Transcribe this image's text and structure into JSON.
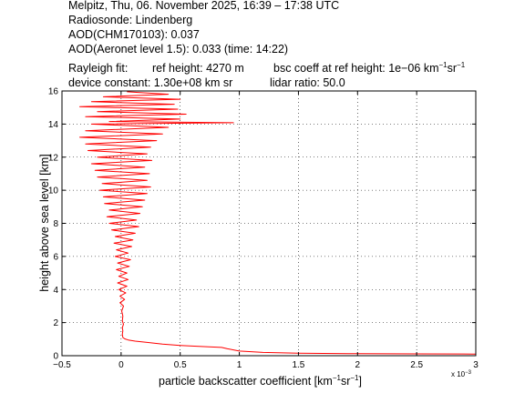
{
  "header": {
    "line1": "Melpitz, Thu, 06. November 2025, 16:39 – 17:38 UTC",
    "line2": "Radiosonde: Lindenberg",
    "line3": "AOD(CHM170103): 0.037",
    "line4": "AOD(Aeronet level 1.5): 0.033   (time: 14:22)",
    "rayleigh_label": "Rayleigh fit:",
    "ref_height": "ref height: 4270 m",
    "bsc_prefix": "bsc coeff at ref height: 1e−06 km",
    "unit_exp1": "−1",
    "unit_sr": "sr",
    "unit_exp2": "−1",
    "device_constant": "device constant: 1.30e+08 km sr",
    "lidar_ratio": "lidar ratio: 50.0"
  },
  "chart_data": {
    "type": "line",
    "title": "",
    "xlabel_main": "particle backscatter coefficient [km",
    "xlabel_exp1": "−1",
    "xlabel_sr": "sr",
    "xlabel_exp2": "−1",
    "xlabel_end": "]",
    "x_multiplier": "x 10",
    "x_multiplier_exp": "−3",
    "ylabel": "height above sea level [km]",
    "xlim": [
      -0.5,
      3
    ],
    "ylim": [
      0,
      16
    ],
    "xticks": [
      -0.5,
      0,
      0.5,
      1,
      1.5,
      2,
      2.5,
      3
    ],
    "xtick_labels": [
      "−0.5",
      "0",
      "0.5",
      "1",
      "1.5",
      "2",
      "2.5",
      "3"
    ],
    "yticks": [
      0,
      2,
      4,
      6,
      8,
      10,
      12,
      14,
      16
    ],
    "ytick_labels": [
      "0",
      "2",
      "4",
      "6",
      "8",
      "10",
      "12",
      "14",
      "16"
    ],
    "grid": true,
    "series": [
      {
        "color": "#ff0000",
        "points": [
          [
            3.0,
            0.1
          ],
          [
            2.5,
            0.11
          ],
          [
            2.0,
            0.12
          ],
          [
            1.5,
            0.15
          ],
          [
            1.2,
            0.2
          ],
          [
            1.0,
            0.28
          ],
          [
            0.95,
            0.35
          ],
          [
            0.9,
            0.42
          ],
          [
            0.85,
            0.5
          ],
          [
            0.7,
            0.55
          ],
          [
            0.5,
            0.62
          ],
          [
            0.35,
            0.7
          ],
          [
            0.22,
            0.8
          ],
          [
            0.12,
            0.88
          ],
          [
            0.06,
            0.95
          ],
          [
            0.03,
            1.02
          ],
          [
            0.015,
            1.1
          ],
          [
            0.01,
            1.3
          ],
          [
            0.015,
            1.5
          ],
          [
            0.01,
            1.7
          ],
          [
            0.02,
            1.9
          ],
          [
            0.01,
            2.1
          ],
          [
            0.015,
            2.4
          ],
          [
            0.005,
            2.7
          ],
          [
            0.02,
            3.0
          ],
          [
            -0.01,
            3.2
          ],
          [
            0.03,
            3.4
          ],
          [
            -0.01,
            3.6
          ],
          [
            0.04,
            3.8
          ],
          [
            -0.02,
            4.0
          ],
          [
            0.05,
            4.2
          ],
          [
            -0.03,
            4.4
          ],
          [
            0.06,
            4.6
          ],
          [
            -0.02,
            4.8
          ],
          [
            0.05,
            5.0
          ],
          [
            -0.04,
            5.2
          ],
          [
            0.07,
            5.4
          ],
          [
            -0.03,
            5.6
          ],
          [
            0.08,
            5.8
          ],
          [
            -0.05,
            6.0
          ],
          [
            0.06,
            6.2
          ],
          [
            -0.04,
            6.4
          ],
          [
            0.09,
            6.6
          ],
          [
            -0.06,
            6.8
          ],
          [
            0.1,
            7.0
          ],
          [
            -0.05,
            7.2
          ],
          [
            0.12,
            7.4
          ],
          [
            -0.08,
            7.6
          ],
          [
            0.15,
            7.8
          ],
          [
            -0.1,
            8.0
          ],
          [
            0.13,
            8.2
          ],
          [
            -0.12,
            8.4
          ],
          [
            0.16,
            8.6
          ],
          [
            -0.1,
            8.8
          ],
          [
            0.18,
            9.0
          ],
          [
            -0.14,
            9.2
          ],
          [
            0.2,
            9.4
          ],
          [
            -0.15,
            9.6
          ],
          [
            0.22,
            9.8
          ],
          [
            -0.18,
            10.0
          ],
          [
            0.25,
            10.2
          ],
          [
            -0.16,
            10.4
          ],
          [
            0.22,
            10.6
          ],
          [
            -0.2,
            10.8
          ],
          [
            0.24,
            11.0
          ],
          [
            -0.22,
            11.2
          ],
          [
            0.2,
            11.4
          ],
          [
            -0.25,
            11.6
          ],
          [
            0.26,
            11.8
          ],
          [
            -0.2,
            12.0
          ],
          [
            0.22,
            12.2
          ],
          [
            -0.28,
            12.4
          ],
          [
            0.25,
            12.6
          ],
          [
            -0.3,
            12.8
          ],
          [
            0.3,
            13.0
          ],
          [
            -0.35,
            13.2
          ],
          [
            0.35,
            13.4
          ],
          [
            -0.3,
            13.6
          ],
          [
            0.4,
            13.8
          ],
          [
            -0.25,
            14.0
          ],
          [
            0.95,
            14.08
          ],
          [
            -0.1,
            14.15
          ],
          [
            0.5,
            14.3
          ],
          [
            -0.3,
            14.45
          ],
          [
            0.55,
            14.6
          ],
          [
            -0.2,
            14.75
          ],
          [
            0.48,
            14.9
          ],
          [
            -0.35,
            15.05
          ],
          [
            0.45,
            15.2
          ],
          [
            -0.25,
            15.35
          ],
          [
            0.5,
            15.5
          ],
          [
            -0.15,
            15.65
          ],
          [
            0.4,
            15.8
          ],
          [
            0.05,
            15.95
          ]
        ]
      }
    ]
  }
}
